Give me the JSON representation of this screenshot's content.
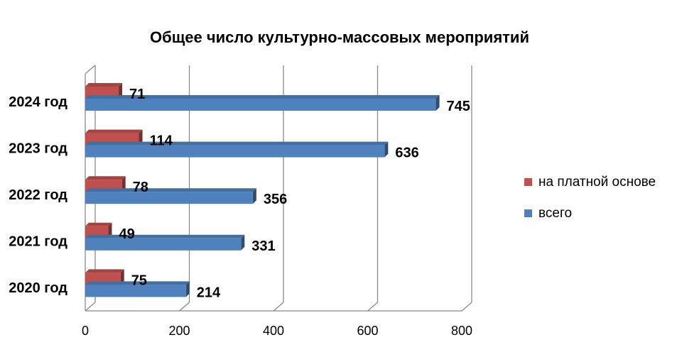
{
  "chart_data": {
    "type": "bar",
    "orientation": "horizontal",
    "title": "Общее число культурно-массовых мероприятий",
    "categories": [
      "2024 год",
      "2023 год",
      "2022 год",
      "2021 год",
      "2020 год"
    ],
    "series": [
      {
        "name": "на платной основе",
        "values": [
          71,
          114,
          78,
          49,
          75
        ],
        "color": "#C0504D"
      },
      {
        "name": "всего",
        "values": [
          745,
          636,
          356,
          331,
          214
        ],
        "color": "#4F81BD"
      }
    ],
    "xlim": [
      0,
      800
    ],
    "xticks": [
      "0",
      "200",
      "400",
      "600",
      "800"
    ],
    "grid": true,
    "legend_position": "right"
  }
}
